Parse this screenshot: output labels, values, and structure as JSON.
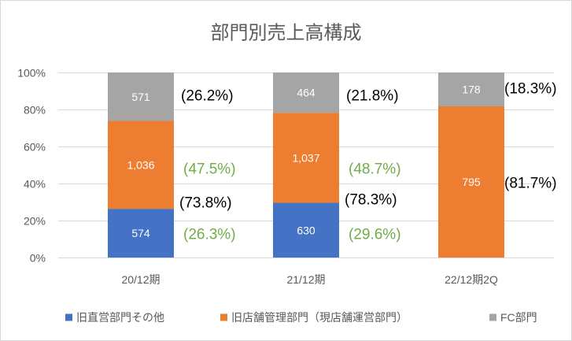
{
  "chart_data": {
    "type": "bar",
    "stacking": "percent",
    "title": "部門別売上高構成",
    "categories": [
      "20/12期",
      "21/12期",
      "22/12期2Q"
    ],
    "y_ticks": [
      "0%",
      "20%",
      "40%",
      "60%",
      "80%",
      "100%"
    ],
    "ylim": [
      0,
      100
    ],
    "grid": true,
    "legend": "bottom",
    "series": [
      {
        "name": "旧直営部門その他",
        "color": "#4472C4",
        "values": [
          574,
          630,
          null
        ],
        "data_labels": [
          "574",
          "630",
          null
        ]
      },
      {
        "name": "旧店舗管理部門（現店舗運営部門）",
        "color": "#ED7D31",
        "values": [
          1036,
          1037,
          795
        ],
        "data_labels": [
          "1,036",
          "1,037",
          "795"
        ]
      },
      {
        "name": "FC部門",
        "color": "#A5A5A5",
        "values": [
          571,
          464,
          178
        ],
        "data_labels": [
          "571",
          "464",
          "178"
        ]
      }
    ],
    "annotations": [
      [
        {
          "text": "(26.2%)",
          "color": "#000000"
        },
        {
          "text": "(47.5%)",
          "color": "#70AD47"
        },
        {
          "text": "(73.8%)",
          "color": "#000000"
        },
        {
          "text": "(26.3%)",
          "color": "#70AD47"
        }
      ],
      [
        {
          "text": "(21.8%)",
          "color": "#000000"
        },
        {
          "text": "(48.7%)",
          "color": "#70AD47"
        },
        {
          "text": "(78.3%)",
          "color": "#000000"
        },
        {
          "text": "(29.6%)",
          "color": "#70AD47"
        }
      ],
      [
        {
          "text": "(18.3%)",
          "color": "#000000"
        },
        {
          "text": "(81.7%)",
          "color": "#000000"
        }
      ]
    ]
  }
}
